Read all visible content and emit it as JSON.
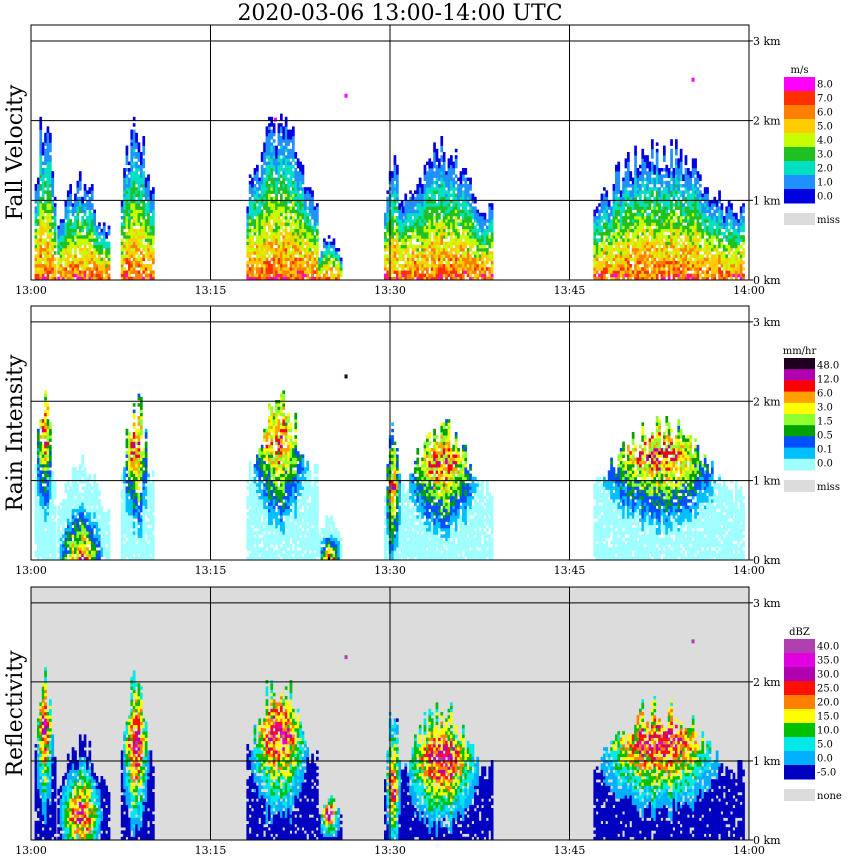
{
  "title": "2020-03-06  13:00-14:00 UTC",
  "chart_data": [
    {
      "type": "heatmap",
      "ylabel": "Fall Velocity",
      "x_ticks": [
        "13:00",
        "13:15",
        "13:30",
        "13:45",
        "14:00"
      ],
      "y_ticks": [
        "0 km",
        "1 km",
        "2 km",
        "3 km"
      ],
      "xlim": [
        "13:00",
        "14:00"
      ],
      "ylim_km": [
        0,
        3.2
      ],
      "background": "#ffffff",
      "colorbar": {
        "unit": "m/s",
        "labels": [
          "8.0",
          "7.0",
          "6.0",
          "5.0",
          "4.0",
          "3.0",
          "2.0",
          "1.0",
          "0.0"
        ],
        "colors": [
          "#ff00ff",
          "#ff3000",
          "#ff7f00",
          "#ffcc00",
          "#c8ff00",
          "#20c020",
          "#00e0c0",
          "#1e90ff",
          "#0000e0"
        ],
        "missing_label": "miss",
        "missing_color": "#dcdcdc"
      },
      "echoes": [
        {
          "start_min": 0.3,
          "end_min": 2.0,
          "top_km": 2.0,
          "core_km": 0.4
        },
        {
          "start_min": 2.2,
          "end_min": 6.5,
          "top_km": 1.2,
          "core_km": 0.4
        },
        {
          "start_min": 7.5,
          "end_min": 10.2,
          "top_km": 1.9,
          "core_km": 0.6
        },
        {
          "start_min": 18.0,
          "end_min": 24.0,
          "top_km": 1.9,
          "core_km": 0.6
        },
        {
          "start_min": 24.0,
          "end_min": 26.0,
          "top_km": 0.5,
          "core_km": 0.3
        },
        {
          "start_min": 29.5,
          "end_min": 31.0,
          "top_km": 1.6,
          "core_km": 0.4
        },
        {
          "start_min": 31.0,
          "end_min": 38.5,
          "top_km": 1.6,
          "core_km": 0.7
        },
        {
          "start_min": 47.0,
          "end_min": 59.5,
          "top_km": 1.6,
          "core_km": 0.8
        }
      ],
      "speckles_km": [
        {
          "min": 26.2,
          "km": 2.3
        },
        {
          "min": 55.2,
          "km": 2.5
        },
        {
          "min": 20.3,
          "km": 2.0
        }
      ]
    },
    {
      "type": "heatmap",
      "ylabel": "Rain Intensity",
      "x_ticks": [
        "13:00",
        "13:15",
        "13:30",
        "13:45",
        "14:00"
      ],
      "y_ticks": [
        "0 km",
        "1 km",
        "2 km",
        "3 km"
      ],
      "xlim": [
        "13:00",
        "14:00"
      ],
      "ylim_km": [
        0,
        3.2
      ],
      "background": "#ffffff",
      "colorbar": {
        "unit": "mm/hr",
        "labels": [
          "48.0",
          "12.0",
          "6.0",
          "3.0",
          "1.5",
          "0.5",
          "0.1",
          "0.0"
        ],
        "colors": [
          "#200020",
          "#b000b0",
          "#ff0000",
          "#ffa000",
          "#ffff00",
          "#90ff30",
          "#00a000",
          "#0050ff",
          "#00bfff",
          "#a0ffff"
        ],
        "missing_label": "miss",
        "missing_color": "#dcdcdc"
      },
      "echoes": [
        {
          "start_min": 0.3,
          "end_min": 2.0,
          "top_km": 2.0,
          "core_km": 1.6
        },
        {
          "start_min": 2.2,
          "end_min": 6.5,
          "top_km": 1.2,
          "core_km": 0.0
        },
        {
          "start_min": 7.5,
          "end_min": 10.2,
          "top_km": 1.9,
          "core_km": 1.4
        },
        {
          "start_min": 18.0,
          "end_min": 24.0,
          "top_km": 1.9,
          "core_km": 1.5
        },
        {
          "start_min": 24.0,
          "end_min": 26.0,
          "top_km": 0.5,
          "core_km": 0.0
        },
        {
          "start_min": 29.5,
          "end_min": 31.0,
          "top_km": 1.6,
          "core_km": 0.9
        },
        {
          "start_min": 31.0,
          "end_min": 38.5,
          "top_km": 1.6,
          "core_km": 1.2
        },
        {
          "start_min": 47.0,
          "end_min": 59.5,
          "top_km": 1.6,
          "core_km": 1.3
        }
      ],
      "speckles_km": [
        {
          "min": 26.2,
          "km": 2.3
        }
      ]
    },
    {
      "type": "heatmap",
      "ylabel": "Reflectivity",
      "x_ticks": [
        "13:00",
        "13:15",
        "13:30",
        "13:45",
        "14:00"
      ],
      "y_ticks": [
        "0 km",
        "1 km",
        "2 km",
        "3 km"
      ],
      "xlim": [
        "13:00",
        "14:00"
      ],
      "ylim_km": [
        0,
        3.2
      ],
      "background": "#dcdcdc",
      "colorbar": {
        "unit": "dBZ",
        "labels": [
          "40.0",
          "35.0",
          "30.0",
          "25.0",
          "20.0",
          "15.0",
          "10.0",
          "5.0",
          "0.0",
          "-5.0"
        ],
        "colors": [
          "#b040b0",
          "#e000e0",
          "#b000b0",
          "#ff1000",
          "#ff8000",
          "#ffff00",
          "#00c000",
          "#00e8e8",
          "#00b0ff",
          "#0000c0"
        ],
        "missing_label": "none",
        "missing_color": "#dcdcdc"
      },
      "echoes": [
        {
          "start_min": 0.3,
          "end_min": 2.0,
          "top_km": 2.0,
          "core_km": 1.4
        },
        {
          "start_min": 2.2,
          "end_min": 6.5,
          "top_km": 1.2,
          "core_km": 0.3
        },
        {
          "start_min": 7.5,
          "end_min": 10.2,
          "top_km": 1.9,
          "core_km": 1.2
        },
        {
          "start_min": 18.0,
          "end_min": 24.0,
          "top_km": 1.9,
          "core_km": 1.3
        },
        {
          "start_min": 24.0,
          "end_min": 26.0,
          "top_km": 0.5,
          "core_km": 0.3
        },
        {
          "start_min": 29.5,
          "end_min": 31.0,
          "top_km": 1.6,
          "core_km": 0.7
        },
        {
          "start_min": 31.0,
          "end_min": 38.5,
          "top_km": 1.6,
          "core_km": 1.0
        },
        {
          "start_min": 47.0,
          "end_min": 59.5,
          "top_km": 1.6,
          "core_km": 1.2
        }
      ],
      "speckles_km": [
        {
          "min": 26.2,
          "km": 2.3
        },
        {
          "min": 55.2,
          "km": 2.5
        }
      ]
    }
  ]
}
